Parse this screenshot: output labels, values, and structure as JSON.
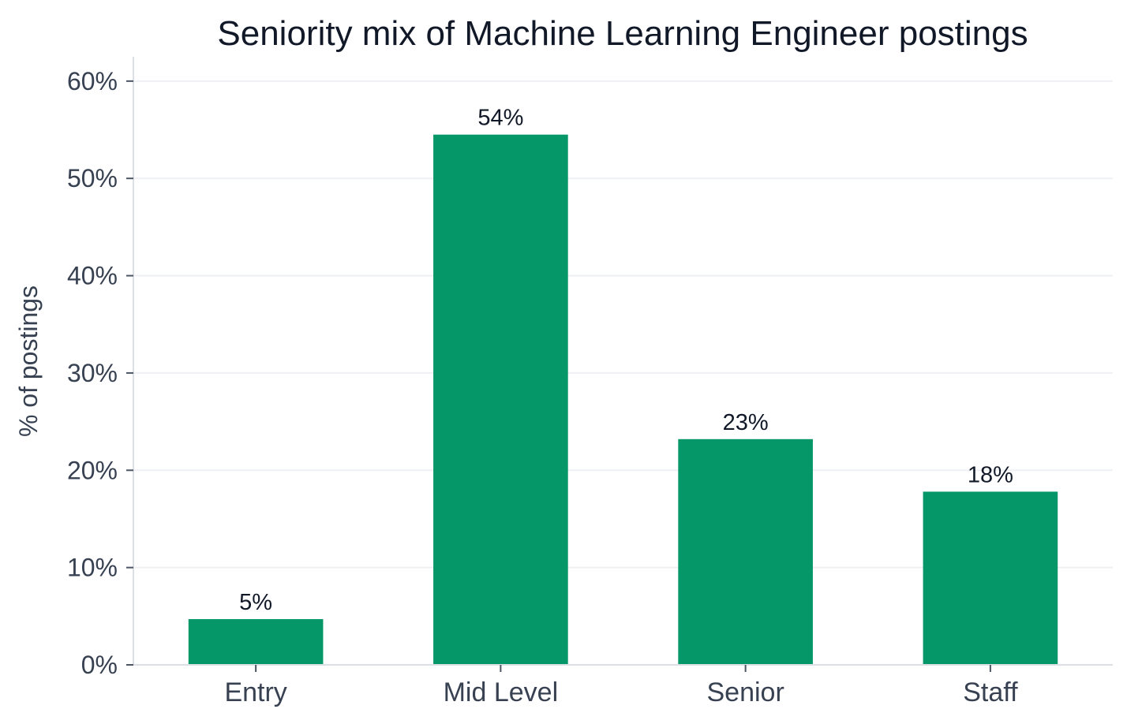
{
  "chart_data": {
    "type": "bar",
    "title": "Seniority mix of Machine Learning Engineer postings",
    "xlabel": "",
    "ylabel": "% of postings",
    "categories": [
      "Entry",
      "Mid Level",
      "Senior",
      "Staff"
    ],
    "values": [
      4.7,
      54.5,
      23.2,
      17.8
    ],
    "data_labels": [
      "5%",
      "54%",
      "23%",
      "18%"
    ],
    "ylim": [
      0,
      62.5
    ],
    "yticks": [
      0,
      10,
      20,
      30,
      40,
      50,
      60
    ],
    "ytick_labels": [
      "0%",
      "10%",
      "20%",
      "30%",
      "40%",
      "50%",
      "60%"
    ],
    "grid": true,
    "legend": "none",
    "bar_color": "#069769"
  }
}
